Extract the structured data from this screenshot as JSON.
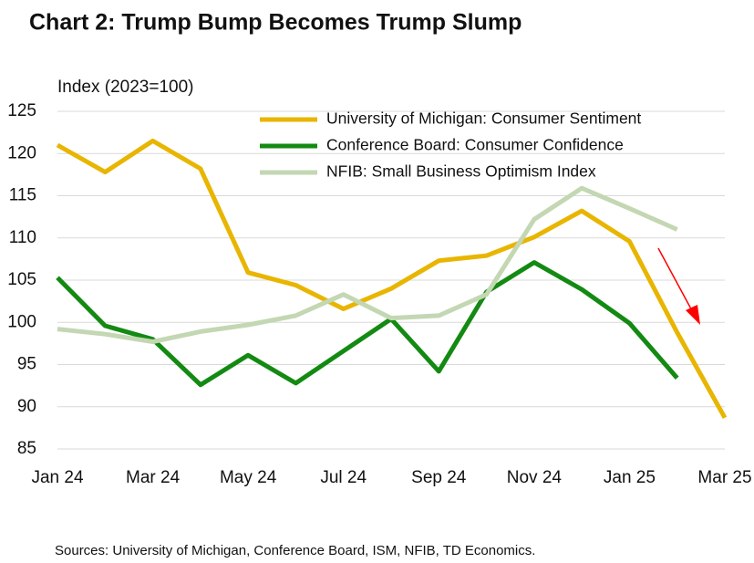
{
  "chart_data": {
    "type": "line",
    "title": "Chart 2: Trump Bump Becomes Trump Slump",
    "y_label": "Index (2023=100)",
    "source": "Sources: University of Michigan, Conference Board, ISM, NFIB, TD Economics.",
    "categories": [
      "Jan 24",
      null,
      "Mar 24",
      null,
      "May 24",
      null,
      "Jul 24",
      null,
      "Sep 24",
      null,
      "Nov 24",
      null,
      "Jan 25",
      null,
      "Mar 25"
    ],
    "series": [
      {
        "name": "University of Michigan: Consumer Sentiment",
        "color": "#e8b500",
        "values": [
          121.0,
          117.8,
          121.5,
          118.2,
          105.9,
          104.4,
          101.6,
          104.0,
          107.3,
          107.9,
          110.1,
          113.2,
          109.6,
          98.8,
          88.7
        ]
      },
      {
        "name": "Conference Board: Consumer Confidence",
        "color": "#138a12",
        "values": [
          105.3,
          99.6,
          98.0,
          92.6,
          96.1,
          92.8,
          96.6,
          100.4,
          94.2,
          103.6,
          107.1,
          103.9,
          99.9,
          93.4,
          null
        ]
      },
      {
        "name": "NFIB: Small Business Optimism Index",
        "color": "#c3d7b3",
        "values": [
          99.2,
          98.6,
          97.7,
          98.9,
          99.7,
          100.8,
          103.3,
          100.5,
          100.8,
          103.3,
          112.2,
          115.9,
          113.5,
          111.0,
          null
        ]
      }
    ],
    "ylim": [
      85,
      125
    ],
    "yticks": [
      85,
      90,
      95,
      100,
      105,
      110,
      115,
      120,
      125
    ],
    "grid": true
  }
}
